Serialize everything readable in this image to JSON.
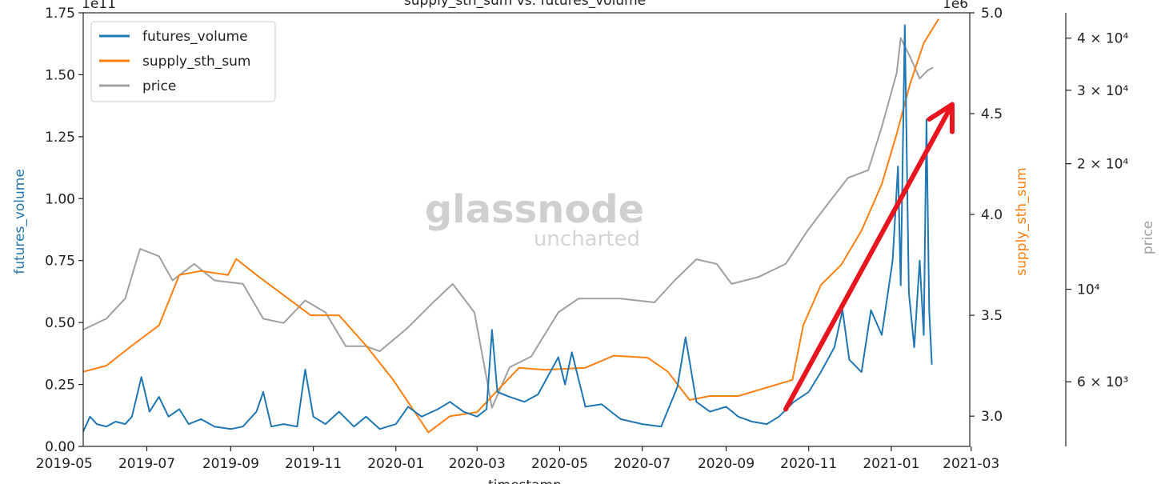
{
  "chart_data": {
    "type": "line",
    "title": "supply_sth_sum vs. futures_volume",
    "xlabel": "timestamp",
    "x_ticks": [
      "2019-05",
      "2019-07",
      "2019-09",
      "2019-11",
      "2020-01",
      "2020-03",
      "2020-05",
      "2020-07",
      "2020-09",
      "2020-11",
      "2021-01",
      "2021-03"
    ],
    "left_axis": {
      "label": "futures_volume",
      "color": "#1f77b4",
      "offset_label": "1e11",
      "ylim": [
        0,
        1.75
      ],
      "ticks": [
        "0.00",
        "0.25",
        "0.50",
        "0.75",
        "1.00",
        "1.25",
        "1.50",
        "1.75"
      ]
    },
    "right_axis": {
      "label": "supply_sth_sum",
      "color": "#ff7f0e",
      "offset_label": "1e6",
      "ylim": [
        2.85,
        5.0
      ],
      "ticks": [
        "3.0",
        "3.5",
        "4.0",
        "4.5",
        "5.0"
      ]
    },
    "price_axis": {
      "label": "price",
      "color": "#a0a0a0",
      "scale": "log",
      "ylim": [
        4200,
        46000
      ],
      "tick_values": [
        6000,
        10000,
        20000,
        30000,
        40000
      ],
      "ticks": [
        "6 × 10³",
        "10⁴",
        "2 × 10⁴",
        "3 × 10⁴",
        "4 × 10⁴"
      ]
    },
    "legend": {
      "placement": "top-left",
      "entries": [
        "futures_volume",
        "supply_sth_sum",
        "price"
      ]
    },
    "grid": false,
    "series": [
      {
        "name": "futures_volume",
        "axis": "left",
        "color": "#1f77b4",
        "points": [
          [
            "2019-05-15",
            0.06
          ],
          [
            "2019-05-20",
            0.12
          ],
          [
            "2019-05-25",
            0.09
          ],
          [
            "2019-06-01",
            0.08
          ],
          [
            "2019-06-08",
            0.1
          ],
          [
            "2019-06-15",
            0.09
          ],
          [
            "2019-06-20",
            0.12
          ],
          [
            "2019-06-27",
            0.28
          ],
          [
            "2019-07-03",
            0.14
          ],
          [
            "2019-07-10",
            0.2
          ],
          [
            "2019-07-17",
            0.12
          ],
          [
            "2019-07-25",
            0.15
          ],
          [
            "2019-08-01",
            0.09
          ],
          [
            "2019-08-10",
            0.11
          ],
          [
            "2019-08-20",
            0.08
          ],
          [
            "2019-09-01",
            0.07
          ],
          [
            "2019-09-10",
            0.08
          ],
          [
            "2019-09-20",
            0.14
          ],
          [
            "2019-09-25",
            0.22
          ],
          [
            "2019-10-01",
            0.08
          ],
          [
            "2019-10-10",
            0.09
          ],
          [
            "2019-10-20",
            0.08
          ],
          [
            "2019-10-26",
            0.31
          ],
          [
            "2019-11-01",
            0.12
          ],
          [
            "2019-11-10",
            0.09
          ],
          [
            "2019-11-20",
            0.14
          ],
          [
            "2019-12-01",
            0.08
          ],
          [
            "2019-12-10",
            0.12
          ],
          [
            "2019-12-20",
            0.07
          ],
          [
            "2020-01-01",
            0.09
          ],
          [
            "2020-01-10",
            0.16
          ],
          [
            "2020-01-20",
            0.12
          ],
          [
            "2020-02-01",
            0.15
          ],
          [
            "2020-02-10",
            0.18
          ],
          [
            "2020-02-20",
            0.14
          ],
          [
            "2020-03-01",
            0.12
          ],
          [
            "2020-03-08",
            0.15
          ],
          [
            "2020-03-12",
            0.47
          ],
          [
            "2020-03-16",
            0.22
          ],
          [
            "2020-03-25",
            0.2
          ],
          [
            "2020-04-05",
            0.18
          ],
          [
            "2020-04-15",
            0.21
          ],
          [
            "2020-04-30",
            0.36
          ],
          [
            "2020-05-05",
            0.25
          ],
          [
            "2020-05-10",
            0.38
          ],
          [
            "2020-05-20",
            0.16
          ],
          [
            "2020-06-01",
            0.17
          ],
          [
            "2020-06-15",
            0.11
          ],
          [
            "2020-07-01",
            0.09
          ],
          [
            "2020-07-15",
            0.08
          ],
          [
            "2020-07-27",
            0.24
          ],
          [
            "2020-08-02",
            0.44
          ],
          [
            "2020-08-10",
            0.18
          ],
          [
            "2020-08-20",
            0.14
          ],
          [
            "2020-09-01",
            0.16
          ],
          [
            "2020-09-10",
            0.12
          ],
          [
            "2020-09-20",
            0.1
          ],
          [
            "2020-10-01",
            0.09
          ],
          [
            "2020-10-10",
            0.12
          ],
          [
            "2020-10-21",
            0.18
          ],
          [
            "2020-11-01",
            0.22
          ],
          [
            "2020-11-10",
            0.3
          ],
          [
            "2020-11-20",
            0.4
          ],
          [
            "2020-11-26",
            0.55
          ],
          [
            "2020-12-01",
            0.35
          ],
          [
            "2020-12-10",
            0.3
          ],
          [
            "2020-12-17",
            0.55
          ],
          [
            "2020-12-25",
            0.45
          ],
          [
            "2021-01-02",
            0.75
          ],
          [
            "2021-01-06",
            1.13
          ],
          [
            "2021-01-08",
            0.65
          ],
          [
            "2021-01-11",
            1.7
          ],
          [
            "2021-01-14",
            0.62
          ],
          [
            "2021-01-18",
            0.4
          ],
          [
            "2021-01-22",
            0.75
          ],
          [
            "2021-01-25",
            0.45
          ],
          [
            "2021-01-27",
            1.32
          ],
          [
            "2021-01-29",
            0.55
          ],
          [
            "2021-01-31",
            0.33
          ]
        ]
      },
      {
        "name": "supply_sth_sum",
        "axis": "right",
        "color": "#ff7f0e",
        "points": [
          [
            "2019-05-15",
            3.22
          ],
          [
            "2019-06-01",
            3.25
          ],
          [
            "2019-06-20",
            3.35
          ],
          [
            "2019-07-10",
            3.45
          ],
          [
            "2019-07-25",
            3.7
          ],
          [
            "2019-08-10",
            3.72
          ],
          [
            "2019-08-30",
            3.7
          ],
          [
            "2019-09-05",
            3.78
          ],
          [
            "2019-09-20",
            3.7
          ],
          [
            "2019-10-10",
            3.6
          ],
          [
            "2019-10-30",
            3.5
          ],
          [
            "2019-11-20",
            3.5
          ],
          [
            "2019-12-10",
            3.35
          ],
          [
            "2019-12-30",
            3.18
          ],
          [
            "2020-01-15",
            3.02
          ],
          [
            "2020-01-25",
            2.92
          ],
          [
            "2020-02-10",
            3.0
          ],
          [
            "2020-03-01",
            3.02
          ],
          [
            "2020-03-15",
            3.12
          ],
          [
            "2020-04-01",
            3.24
          ],
          [
            "2020-04-20",
            3.23
          ],
          [
            "2020-05-20",
            3.24
          ],
          [
            "2020-06-10",
            3.3
          ],
          [
            "2020-07-05",
            3.29
          ],
          [
            "2020-07-20",
            3.22
          ],
          [
            "2020-08-05",
            3.08
          ],
          [
            "2020-08-20",
            3.1
          ],
          [
            "2020-09-10",
            3.1
          ],
          [
            "2020-10-05",
            3.15
          ],
          [
            "2020-10-20",
            3.18
          ],
          [
            "2020-10-28",
            3.45
          ],
          [
            "2020-11-10",
            3.65
          ],
          [
            "2020-11-25",
            3.75
          ],
          [
            "2020-12-10",
            3.92
          ],
          [
            "2020-12-25",
            4.15
          ],
          [
            "2021-01-05",
            4.4
          ],
          [
            "2021-01-15",
            4.65
          ],
          [
            "2021-01-25",
            4.85
          ],
          [
            "2021-02-05",
            4.97
          ]
        ]
      },
      {
        "name": "price",
        "axis": "price",
        "color": "#a0a0a0",
        "points": [
          [
            "2019-05-15",
            8000
          ],
          [
            "2019-06-01",
            8500
          ],
          [
            "2019-06-15",
            9500
          ],
          [
            "2019-06-26",
            12500
          ],
          [
            "2019-07-10",
            12000
          ],
          [
            "2019-07-20",
            10500
          ],
          [
            "2019-08-05",
            11500
          ],
          [
            "2019-08-20",
            10500
          ],
          [
            "2019-09-10",
            10300
          ],
          [
            "2019-09-25",
            8500
          ],
          [
            "2019-10-10",
            8300
          ],
          [
            "2019-10-26",
            9400
          ],
          [
            "2019-11-10",
            8800
          ],
          [
            "2019-11-25",
            7300
          ],
          [
            "2019-12-10",
            7300
          ],
          [
            "2019-12-20",
            7100
          ],
          [
            "2020-01-10",
            8100
          ],
          [
            "2020-01-30",
            9400
          ],
          [
            "2020-02-12",
            10300
          ],
          [
            "2020-02-28",
            8800
          ],
          [
            "2020-03-12",
            5200
          ],
          [
            "2020-03-25",
            6500
          ],
          [
            "2020-04-10",
            6900
          ],
          [
            "2020-04-30",
            8800
          ],
          [
            "2020-05-15",
            9500
          ],
          [
            "2020-06-15",
            9500
          ],
          [
            "2020-07-10",
            9300
          ],
          [
            "2020-07-25",
            10500
          ],
          [
            "2020-08-10",
            11800
          ],
          [
            "2020-08-25",
            11500
          ],
          [
            "2020-09-05",
            10300
          ],
          [
            "2020-09-25",
            10700
          ],
          [
            "2020-10-15",
            11500
          ],
          [
            "2020-10-31",
            13800
          ],
          [
            "2020-11-15",
            16000
          ],
          [
            "2020-11-30",
            18500
          ],
          [
            "2020-12-15",
            19300
          ],
          [
            "2020-12-25",
            24500
          ],
          [
            "2021-01-05",
            33000
          ],
          [
            "2021-01-08",
            40000
          ],
          [
            "2021-01-15",
            36000
          ],
          [
            "2021-01-22",
            32000
          ],
          [
            "2021-01-28",
            33500
          ],
          [
            "2021-02-01",
            34000
          ]
        ]
      }
    ]
  },
  "watermark": {
    "main": "glassnode",
    "sub": "uncharted"
  },
  "arrow": {
    "color": "#e8141e",
    "from": [
      "2020-10-15",
      0.15
    ],
    "to": [
      "2021-02-15",
      1.38
    ]
  }
}
